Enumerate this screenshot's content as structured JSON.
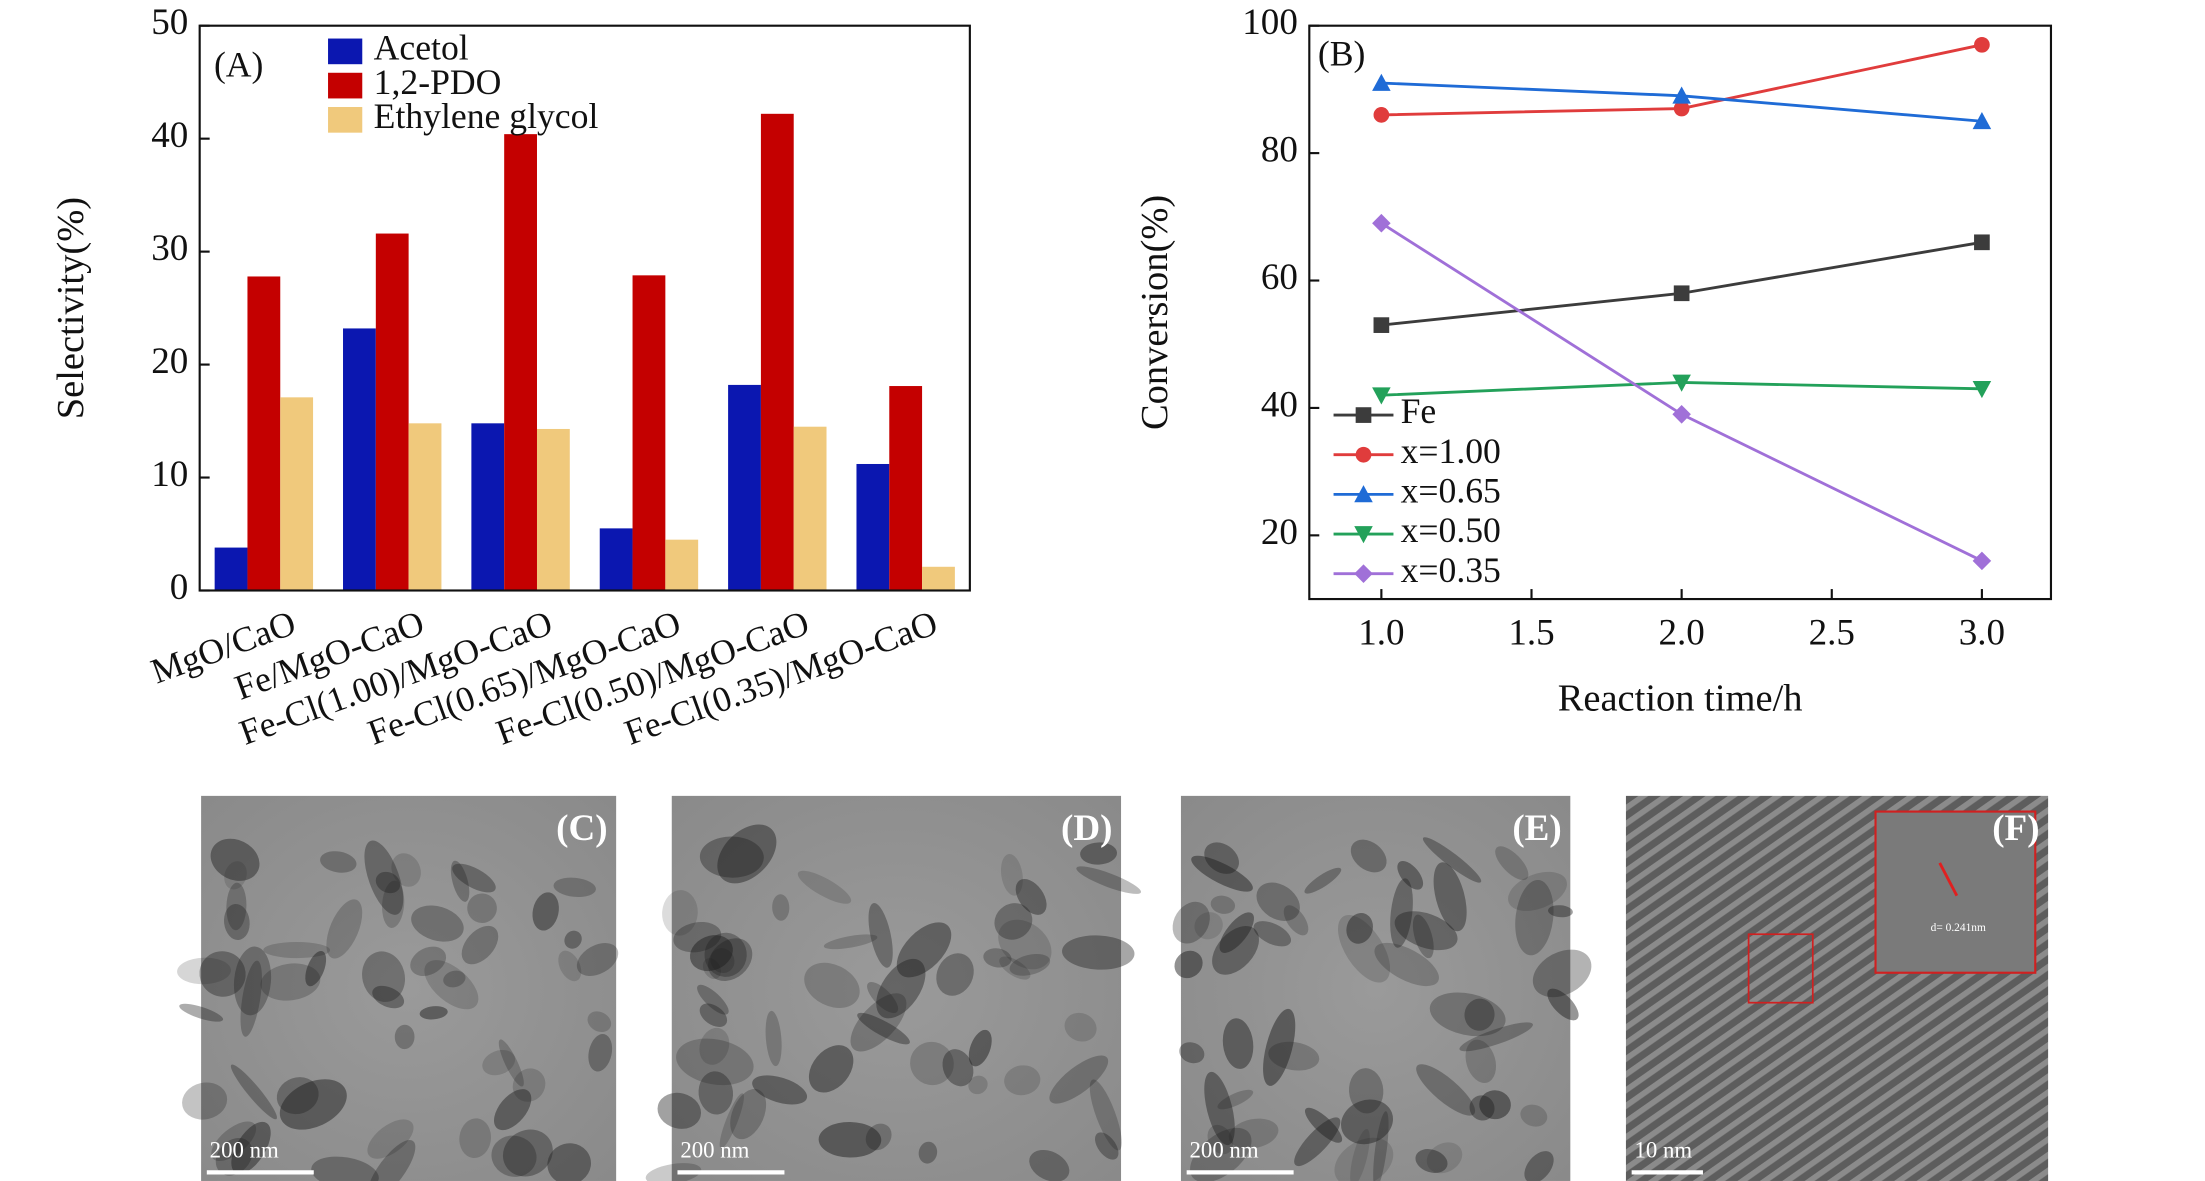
{
  "chart_data": [
    {
      "type": "bar",
      "title": "(A)",
      "y_label": "Selectivity(%)",
      "categories": [
        "MgO/CaO",
        "Fe/MgO-CaO",
        "Fe-Cl(1.00)/MgO-CaO",
        "Fe-Cl(0.65)/MgO-CaO",
        "Fe-Cl(0.50)/MgO-CaO",
        "Fe-Cl(0.35)/MgO-CaO"
      ],
      "series": [
        {
          "name": "Acetol",
          "color": "#0b17b0",
          "values": [
            3.8,
            23.2,
            14.8,
            5.5,
            18.2,
            11.2
          ]
        },
        {
          "name": "1,2-PDO",
          "color": "#c40000",
          "values": [
            27.8,
            31.6,
            40.4,
            27.9,
            42.2,
            18.1
          ]
        },
        {
          "name": "Ethylene glycol",
          "color": "#f0c97c",
          "values": [
            17.1,
            14.8,
            14.3,
            4.5,
            14.5,
            2.1
          ]
        }
      ],
      "ylim": [
        0,
        50
      ],
      "yticks": [
        0,
        10,
        20,
        30,
        40,
        50
      ]
    },
    {
      "type": "line",
      "title": "(B)",
      "x_label": "Reaction time/h",
      "y_label": "Conversion(%)",
      "x": [
        1,
        2,
        3
      ],
      "series": [
        {
          "name": "Fe",
          "color": "#3c3c3c",
          "marker": "square",
          "values": [
            53,
            58,
            66
          ]
        },
        {
          "name": "x=1.00",
          "color": "#e03c3c",
          "marker": "circle",
          "values": [
            86,
            87,
            97
          ]
        },
        {
          "name": "x=0.65",
          "color": "#1f6bd6",
          "marker": "triangle-up",
          "values": [
            91,
            89,
            85
          ]
        },
        {
          "name": "x=0.50",
          "color": "#23a15a",
          "marker": "triangle-down",
          "values": [
            42,
            44,
            43
          ]
        },
        {
          "name": "x=0.35",
          "color": "#a070d8",
          "marker": "diamond",
          "values": [
            69,
            39,
            16
          ]
        }
      ],
      "xlim": [
        0.76,
        3.23
      ],
      "xticks": [
        {
          "value": 1,
          "label": "1.0"
        },
        {
          "value": 1.5,
          "label": "1.5"
        },
        {
          "value": 2,
          "label": "2.0"
        },
        {
          "value": 2.5,
          "label": "2.5"
        },
        {
          "value": 3,
          "label": "3.0"
        }
      ],
      "ylim": [
        10,
        100
      ],
      "yticks": [
        20,
        40,
        60,
        80,
        100
      ]
    }
  ],
  "images": [
    {
      "label": "(C)",
      "scale": "200 nm"
    },
    {
      "label": "(D)",
      "scale": "200 nm"
    },
    {
      "label": "(E)",
      "scale": "200 nm"
    },
    {
      "label": "(F)",
      "scale": "10 nm",
      "note": "d= 0.241nm"
    }
  ]
}
